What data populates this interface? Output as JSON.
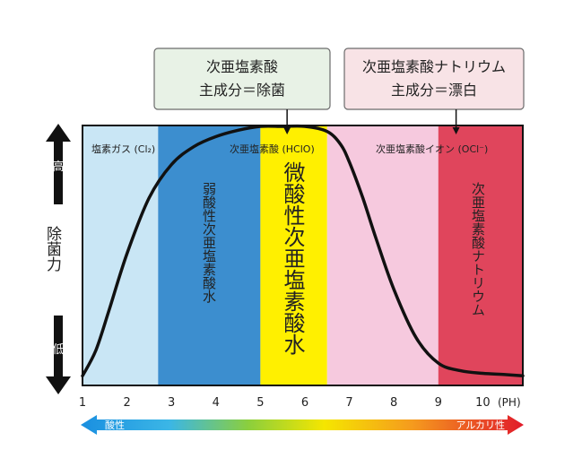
{
  "callouts": {
    "hypochlorous": {
      "line1": "次亜塩素酸",
      "line2": "主成分＝除菌"
    },
    "sodium": {
      "line1": "次亜塩素酸ナトリウム",
      "line2": "主成分＝漂白"
    }
  },
  "y_axis": {
    "high": "高",
    "title": "除菌力",
    "low": "低"
  },
  "region_labels": {
    "chlorine_gas": "塩素ガス (Cl₂)",
    "hclo": "次亜塩素酸 (HClO)",
    "ocl_ion": "次亜塩素酸イオン (OCl⁻)"
  },
  "band_labels": {
    "weak_acid": "弱酸性次亜塩素酸水",
    "slight_acid": "微酸性次亜塩素酸水",
    "sodium_hypochlorite": "次亜塩素酸ナトリウム"
  },
  "ph_scale": {
    "acid": "酸性",
    "alkaline": "アルカリ性"
  },
  "colors": {
    "chlorine_gas": "#c9e6f5",
    "weak_acid": "#3c8ecf",
    "slight_acid": "#fff000",
    "ocl_ion": "#f6c9de",
    "sodium_hypochlorite": "#e0455c",
    "curve": "#111111",
    "callout_green_bg": "#e8f2e6",
    "callout_pink_bg": "#f8e3e6"
  },
  "chart_data": {
    "type": "line",
    "x_unit": "(PH)",
    "xlim": [
      1,
      10.9
    ],
    "x_ticks": [
      "1",
      "2",
      "3",
      "4",
      "5",
      "6",
      "7",
      "8",
      "9",
      "10"
    ],
    "ylim": [
      0,
      1
    ],
    "y_scale": "relative, unlabeled (低 to 高)",
    "regions": [
      {
        "name": "塩素ガス (Cl₂)",
        "from": 1.0,
        "to": 2.7
      },
      {
        "name": "弱酸性次亜塩素酸水",
        "from": 2.7,
        "to": 5.0
      },
      {
        "name": "微酸性次亜塩素酸水",
        "from": 5.0,
        "to": 6.5
      },
      {
        "name": "次亜塩素酸イオン (OCl⁻)",
        "from": 6.5,
        "to": 9.0
      },
      {
        "name": "次亜塩素酸ナトリウム",
        "from": 9.0,
        "to": 10.9
      }
    ],
    "series": [
      {
        "x": [
          1.0,
          1.3,
          1.6,
          2.0,
          2.5,
          3.0,
          3.5,
          4.0,
          4.5,
          5.0,
          5.5,
          6.0,
          6.5,
          6.8,
          7.0,
          7.3,
          7.6,
          8.0,
          8.5,
          9.0,
          9.5,
          10.0,
          10.5,
          10.9
        ],
        "y": [
          0.02,
          0.12,
          0.28,
          0.5,
          0.72,
          0.85,
          0.92,
          0.96,
          0.985,
          1.0,
          1.0,
          1.0,
          0.98,
          0.93,
          0.86,
          0.72,
          0.56,
          0.36,
          0.17,
          0.07,
          0.04,
          0.03,
          0.025,
          0.02
        ]
      }
    ],
    "callout_points": {
      "hypochlorous": 5.6,
      "sodium": 9.4
    }
  }
}
